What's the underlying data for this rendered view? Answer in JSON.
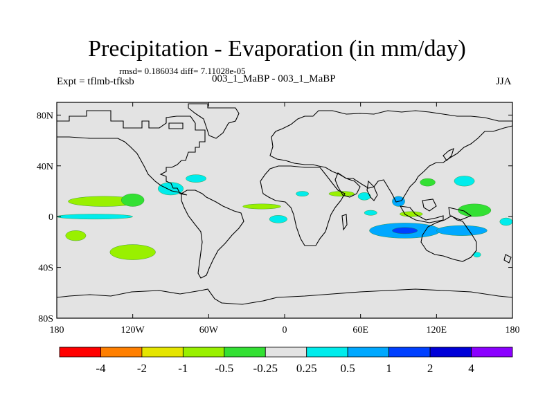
{
  "title": "Precipitation - Evaporation (in mm/day)",
  "stats": "rmsd= 0.186034 diff= 7.11028e-05",
  "experiment": "Expt = tflmb-tfksb",
  "cases": "003_1_MaBP - 003_1_MaBP",
  "season": "JJA",
  "x_ticks": [
    {
      "lon": -180,
      "label": "180"
    },
    {
      "lon": -120,
      "label": "120W"
    },
    {
      "lon": -60,
      "label": "60W"
    },
    {
      "lon": 0,
      "label": "0"
    },
    {
      "lon": 60,
      "label": "60E"
    },
    {
      "lon": 120,
      "label": "120E"
    },
    {
      "lon": 180,
      "label": "180"
    }
  ],
  "y_ticks": [
    {
      "lat": 80,
      "label": "80N"
    },
    {
      "lat": 40,
      "label": "40N"
    },
    {
      "lat": 0,
      "label": "0"
    },
    {
      "lat": -40,
      "label": "40S"
    },
    {
      "lat": -80,
      "label": "80S"
    }
  ],
  "colorbar": {
    "colors": [
      "#ff0000",
      "#ff7f00",
      "#e5e500",
      "#99f000",
      "#33e033",
      "#e3e3e3",
      "#00ecec",
      "#00a8ff",
      "#0040ff",
      "#0000d8",
      "#8b00ff"
    ],
    "labels": [
      "-4",
      "-2",
      "-1",
      "-0.5",
      "-0.25",
      "0.25",
      "0.5",
      "1",
      "2",
      "4"
    ]
  },
  "colors": {
    "background": "#e3e3e3",
    "coast": "#000000"
  },
  "anomalies": [
    {
      "lon": -143,
      "lat": 12,
      "rx": 28,
      "ry": 4,
      "color": "#99f000"
    },
    {
      "lon": -120,
      "lat": 13,
      "rx": 9,
      "ry": 5,
      "color": "#33e033"
    },
    {
      "lon": -150,
      "lat": 0,
      "rx": 30,
      "ry": 2,
      "color": "#00ecec"
    },
    {
      "lon": -165,
      "lat": -15,
      "rx": 8,
      "ry": 4,
      "color": "#99f000"
    },
    {
      "lon": -120,
      "lat": -28,
      "rx": 18,
      "ry": 6,
      "color": "#99f000"
    },
    {
      "lon": -90,
      "lat": 22,
      "rx": 10,
      "ry": 5,
      "color": "#00ecec"
    },
    {
      "lon": -70,
      "lat": 30,
      "rx": 8,
      "ry": 3,
      "color": "#00ecec"
    },
    {
      "lon": -18,
      "lat": 8,
      "rx": 15,
      "ry": 2,
      "color": "#99f000"
    },
    {
      "lon": -5,
      "lat": -2,
      "rx": 7,
      "ry": 3,
      "color": "#00ecec"
    },
    {
      "lon": 14,
      "lat": 18,
      "rx": 5,
      "ry": 2,
      "color": "#00ecec"
    },
    {
      "lon": 45,
      "lat": 18,
      "rx": 10,
      "ry": 2,
      "color": "#99f000"
    },
    {
      "lon": 63,
      "lat": 16,
      "rx": 5,
      "ry": 3,
      "color": "#00ecec"
    },
    {
      "lon": 90,
      "lat": 12,
      "rx": 5,
      "ry": 4,
      "color": "#00a8ff"
    },
    {
      "lon": 113,
      "lat": 27,
      "rx": 6,
      "ry": 3,
      "color": "#33e033"
    },
    {
      "lon": 142,
      "lat": 28,
      "rx": 8,
      "ry": 4,
      "color": "#00ecec"
    },
    {
      "lon": 150,
      "lat": 5,
      "rx": 13,
      "ry": 5,
      "color": "#33e033"
    },
    {
      "lon": 100,
      "lat": 2,
      "rx": 9,
      "ry": 2,
      "color": "#99f000"
    },
    {
      "lon": 68,
      "lat": 3,
      "rx": 5,
      "ry": 2,
      "color": "#00ecec"
    },
    {
      "lon": 95,
      "lat": -11,
      "rx": 28,
      "ry": 6,
      "color": "#00a8ff"
    },
    {
      "lon": 140,
      "lat": -11,
      "rx": 20,
      "ry": 4,
      "color": "#00a8ff"
    },
    {
      "lon": 95,
      "lat": -11,
      "rx": 10,
      "ry": 2.5,
      "color": "#0040ff"
    },
    {
      "lon": 175,
      "lat": -4,
      "rx": 5,
      "ry": 3,
      "color": "#00ecec"
    },
    {
      "lon": 152,
      "lat": -30,
      "rx": 3,
      "ry": 2,
      "color": "#00ecec"
    }
  ]
}
